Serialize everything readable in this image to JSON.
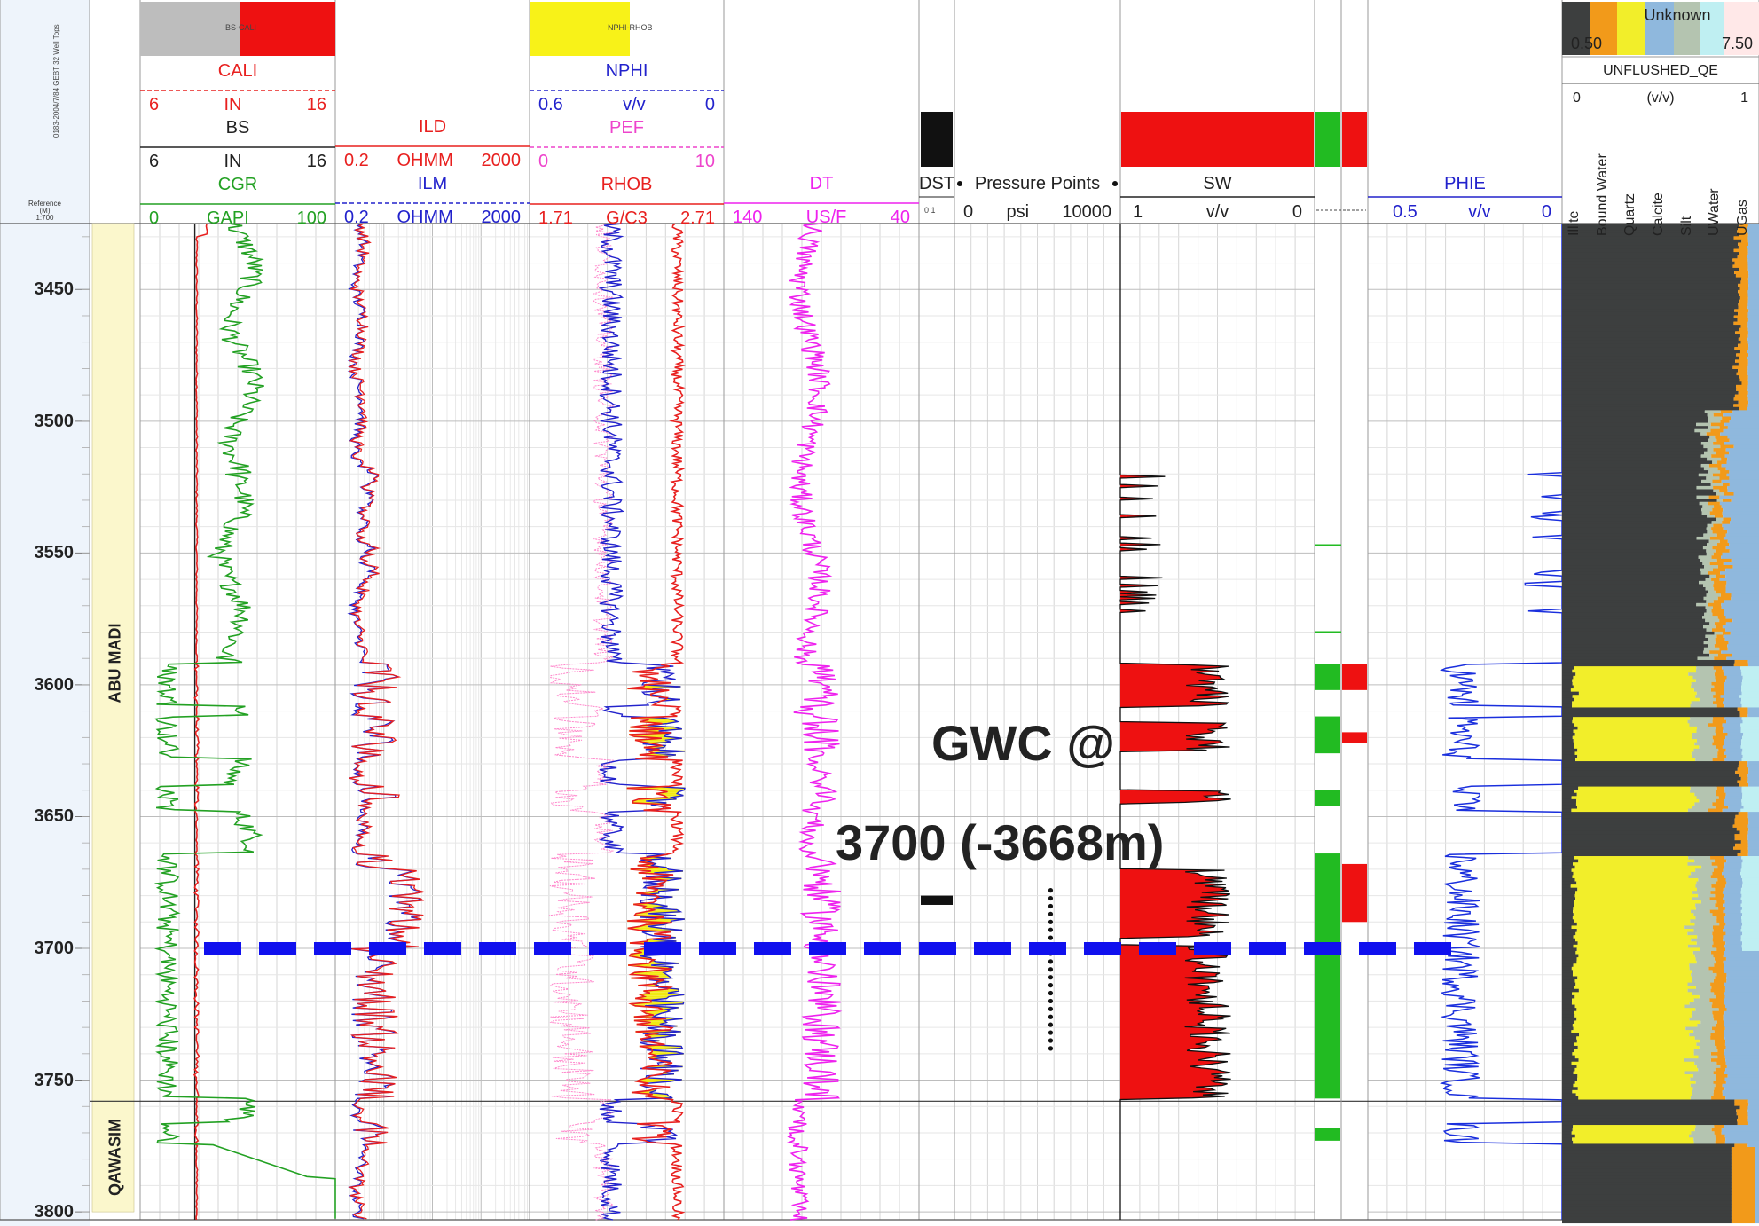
{
  "reference": {
    "line1": "Reference",
    "line2": "(M)",
    "line3": "1:700"
  },
  "well_header_text": "0183-2004/7/84 GEBT 32 Well Tops",
  "tracks": {
    "t1": {
      "caliper_fill_label": "CALI",
      "caliper_fill_text": "BS-CALI",
      "curves": [
        {
          "name": "CALI",
          "unit": "IN",
          "min": "6",
          "max": "16",
          "color": "#e8201f",
          "dashed": true
        },
        {
          "name": "BS",
          "unit": "IN",
          "min": "6",
          "max": "16",
          "color": "#222222",
          "dashed": false
        },
        {
          "name": "CGR",
          "unit": "GAPI",
          "min": "0",
          "max": "100",
          "color": "#23a123",
          "dashed": false
        }
      ]
    },
    "t2": {
      "curves": [
        {
          "name": "ILD",
          "unit": "OHMM",
          "min": "0.2",
          "max": "2000",
          "color": "#e8201f",
          "dashed": false
        },
        {
          "name": "ILM",
          "unit": "OHMM",
          "min": "0.2",
          "max": "2000",
          "color": "#2222cc",
          "dashed": true
        }
      ]
    },
    "t3": {
      "fill_text": "NPHI-RHOB",
      "curves": [
        {
          "name": "NPHI",
          "unit": "v/v",
          "min": "0.6",
          "max": "0",
          "color": "#2222cc",
          "dashed": true
        },
        {
          "name": "PEF",
          "unit": "",
          "min": "0",
          "max": "10",
          "color": "#ee44cc",
          "dashed": true
        },
        {
          "name": "RHOB",
          "unit": "G/C3",
          "min": "1.71",
          "max": "2.71",
          "color": "#e8201f",
          "dashed": false
        }
      ]
    },
    "t4": {
      "curves": [
        {
          "name": "DT",
          "unit": "US/F",
          "min": "140",
          "max": "40",
          "color": "#ee22ee",
          "dashed": false
        }
      ]
    },
    "t5": {
      "title": "DST",
      "scale": "0 1"
    },
    "t6": {
      "title": "Pressure Points",
      "min": "0",
      "unit": "psi",
      "max": "10000"
    },
    "t7": {
      "title": "SW",
      "min": "1",
      "unit": "v/v",
      "max": "0"
    },
    "t9": {
      "title": "PHIE",
      "min": "0.5",
      "unit": "v/v",
      "max": "0"
    },
    "t10": {
      "legend_title": "Unknown",
      "legend_left_value": "0.50",
      "legend_right_value": "7.50",
      "curve_name": "UNFLUSHED_QE",
      "min": "0",
      "unit": "(v/v)",
      "max": "1",
      "columns": [
        "Illite",
        "Bound Water",
        "Quartz",
        "Calcite",
        "Silt",
        "UWater",
        "UGas"
      ]
    }
  },
  "depth_labels": [
    "3450",
    "3500",
    "3550",
    "3600",
    "3650",
    "3700",
    "3750",
    "3800"
  ],
  "zones": [
    {
      "name": "ABU MADI",
      "top": 3425,
      "base": 3758
    },
    {
      "name": "QAWASIM",
      "top": 3758,
      "base": 3800
    }
  ],
  "annotation": {
    "line1": "GWC @",
    "line2": "3700 (-3668m)"
  },
  "colors": {
    "gr": "#23a123",
    "res_deep": "#e8201f",
    "res_med": "#2222cc",
    "dens": "#e8201f",
    "neut": "#2222cc",
    "pef": "#ff88cc",
    "dt": "#ee22ee",
    "sw_fill": "#ee1111",
    "phie": "#1a2fdd",
    "gwc_line": "#1010ee",
    "flag_green": "#22bb22",
    "zone_fill": "#fbf7cc",
    "shale": "#3d3f3f",
    "sand": "#f2ee2a",
    "silt": "#b4c4b0",
    "water": "#8fb8dd",
    "gas": "#bfeff2",
    "boundwater": "#f29a1a"
  },
  "chart_data": {
    "type": "well_log",
    "depth_range": [
      3425,
      3803
    ],
    "depth_unit": "m",
    "gwc_depth": 3700,
    "dst_intervals": [
      [
        3680,
        3683.5
      ]
    ],
    "pressure_points": [
      3678,
      3681,
      3684,
      3687,
      3690,
      3693,
      3696,
      3699,
      3702,
      3705,
      3708,
      3711,
      3714,
      3717,
      3720,
      3723,
      3726,
      3729,
      3732,
      3735,
      3738
    ],
    "pay_flags": [
      [
        3592,
        3602
      ],
      [
        3612,
        3626
      ],
      [
        3640,
        3646
      ],
      [
        3664,
        3698
      ],
      [
        3702,
        3757
      ],
      [
        3768,
        3773
      ]
    ],
    "sw_intervals": [
      [
        3592,
        3608
      ],
      [
        3614,
        3625
      ],
      [
        3640,
        3645
      ],
      [
        3670,
        3696
      ],
      [
        3699,
        3757
      ]
    ],
    "res_flags": [
      [
        3592,
        3602
      ],
      [
        3618,
        3622
      ],
      [
        3668,
        3690
      ]
    ]
  }
}
